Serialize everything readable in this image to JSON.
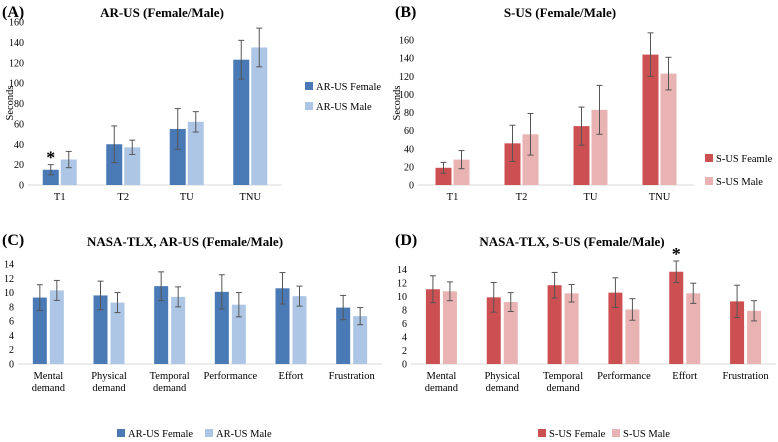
{
  "chart_data": [
    {
      "panel": "(A)",
      "type": "bar",
      "title": "AR-US (Female/Male)",
      "ylabel": "Seconds",
      "xlabel": "",
      "ylim": [
        0,
        160
      ],
      "yticks": [
        0,
        20,
        40,
        60,
        80,
        100,
        120,
        140,
        160
      ],
      "categories": [
        "T1",
        "T2",
        "TU",
        "TNU"
      ],
      "series": [
        {
          "name": "AR-US Female",
          "color": "#4a7ab5",
          "values": [
            15,
            40,
            55,
            123
          ],
          "errors": [
            5,
            18,
            20,
            19
          ]
        },
        {
          "name": "AR-US Male",
          "color": "#adc6e5",
          "values": [
            25,
            37,
            62,
            135
          ],
          "errors": [
            8,
            7,
            10,
            19
          ]
        }
      ],
      "legend": "right",
      "significance": [
        {
          "category": "T1",
          "series": "AR-US Female",
          "mark": "*"
        }
      ]
    },
    {
      "panel": "(B)",
      "type": "bar",
      "title": "S-US (Female/Male)",
      "ylabel": "Seconds",
      "xlabel": "",
      "ylim": [
        0,
        180
      ],
      "yticks": [
        0,
        20,
        40,
        60,
        80,
        100,
        120,
        140,
        160
      ],
      "categories": [
        "T1",
        "T2",
        "TU",
        "TNU"
      ],
      "series": [
        {
          "name": "S-US Feamle",
          "color": "#cc4f51",
          "values": [
            19,
            46,
            65,
            144
          ],
          "errors": [
            6,
            20,
            21,
            24
          ]
        },
        {
          "name": "S-US Male",
          "color": "#e9b3b3",
          "values": [
            28,
            56,
            83,
            123
          ],
          "errors": [
            10,
            23,
            27,
            18
          ]
        }
      ],
      "legend": "right"
    },
    {
      "panel": "(C)",
      "type": "bar",
      "title": "NASA-TLX, AR-US (Female/Male)",
      "ylabel": "",
      "xlabel": "",
      "ylim": [
        0,
        14
      ],
      "yticks": [
        0,
        2,
        4,
        6,
        8,
        10,
        12,
        14
      ],
      "categories": [
        [
          "Mental",
          "demand"
        ],
        [
          "Physical",
          "demand"
        ],
        [
          "Temporal",
          "demand"
        ],
        [
          "Performance"
        ],
        [
          "Effort"
        ],
        [
          "Frustration"
        ]
      ],
      "series": [
        {
          "name": "AR-US Female",
          "color": "#4a7ab5",
          "values": [
            9.3,
            9.6,
            10.9,
            10.1,
            10.6,
            7.9
          ],
          "errors": [
            1.8,
            2.0,
            2.0,
            2.4,
            2.2,
            1.7
          ]
        },
        {
          "name": "AR-US Male",
          "color": "#adc6e5",
          "values": [
            10.3,
            8.6,
            9.4,
            8.3,
            9.5,
            6.7
          ],
          "errors": [
            1.4,
            1.4,
            1.4,
            1.7,
            1.4,
            1.2
          ]
        }
      ],
      "legend": "bottom"
    },
    {
      "panel": "(D)",
      "type": "bar",
      "title": "NASA-TLX, S-US (Female/Male)",
      "ylabel": "",
      "xlabel": "",
      "ylim": [
        0,
        15
      ],
      "yticks": [
        0,
        2,
        4,
        6,
        8,
        10,
        12,
        14
      ],
      "categories": [
        [
          "Mental",
          "demand"
        ],
        [
          "Physical",
          "demand"
        ],
        [
          "Temporal",
          "demand"
        ],
        [
          "Performance"
        ],
        [
          "Effort"
        ],
        [
          "Frustration"
        ]
      ],
      "series": [
        {
          "name": "S-US Female",
          "color": "#cc4f51",
          "values": [
            11.1,
            9.9,
            11.7,
            10.6,
            13.7,
            9.3
          ],
          "errors": [
            2.0,
            2.2,
            1.9,
            2.2,
            1.6,
            2.4
          ]
        },
        {
          "name": "S-US Male",
          "color": "#e9b3b3",
          "values": [
            10.8,
            9.2,
            10.5,
            8.1,
            10.5,
            7.9
          ],
          "errors": [
            1.4,
            1.4,
            1.3,
            1.6,
            1.5,
            1.5
          ]
        }
      ],
      "legend": "bottom",
      "significance": [
        {
          "category": "Effort",
          "series": "S-US Female",
          "mark": "*"
        }
      ]
    }
  ]
}
